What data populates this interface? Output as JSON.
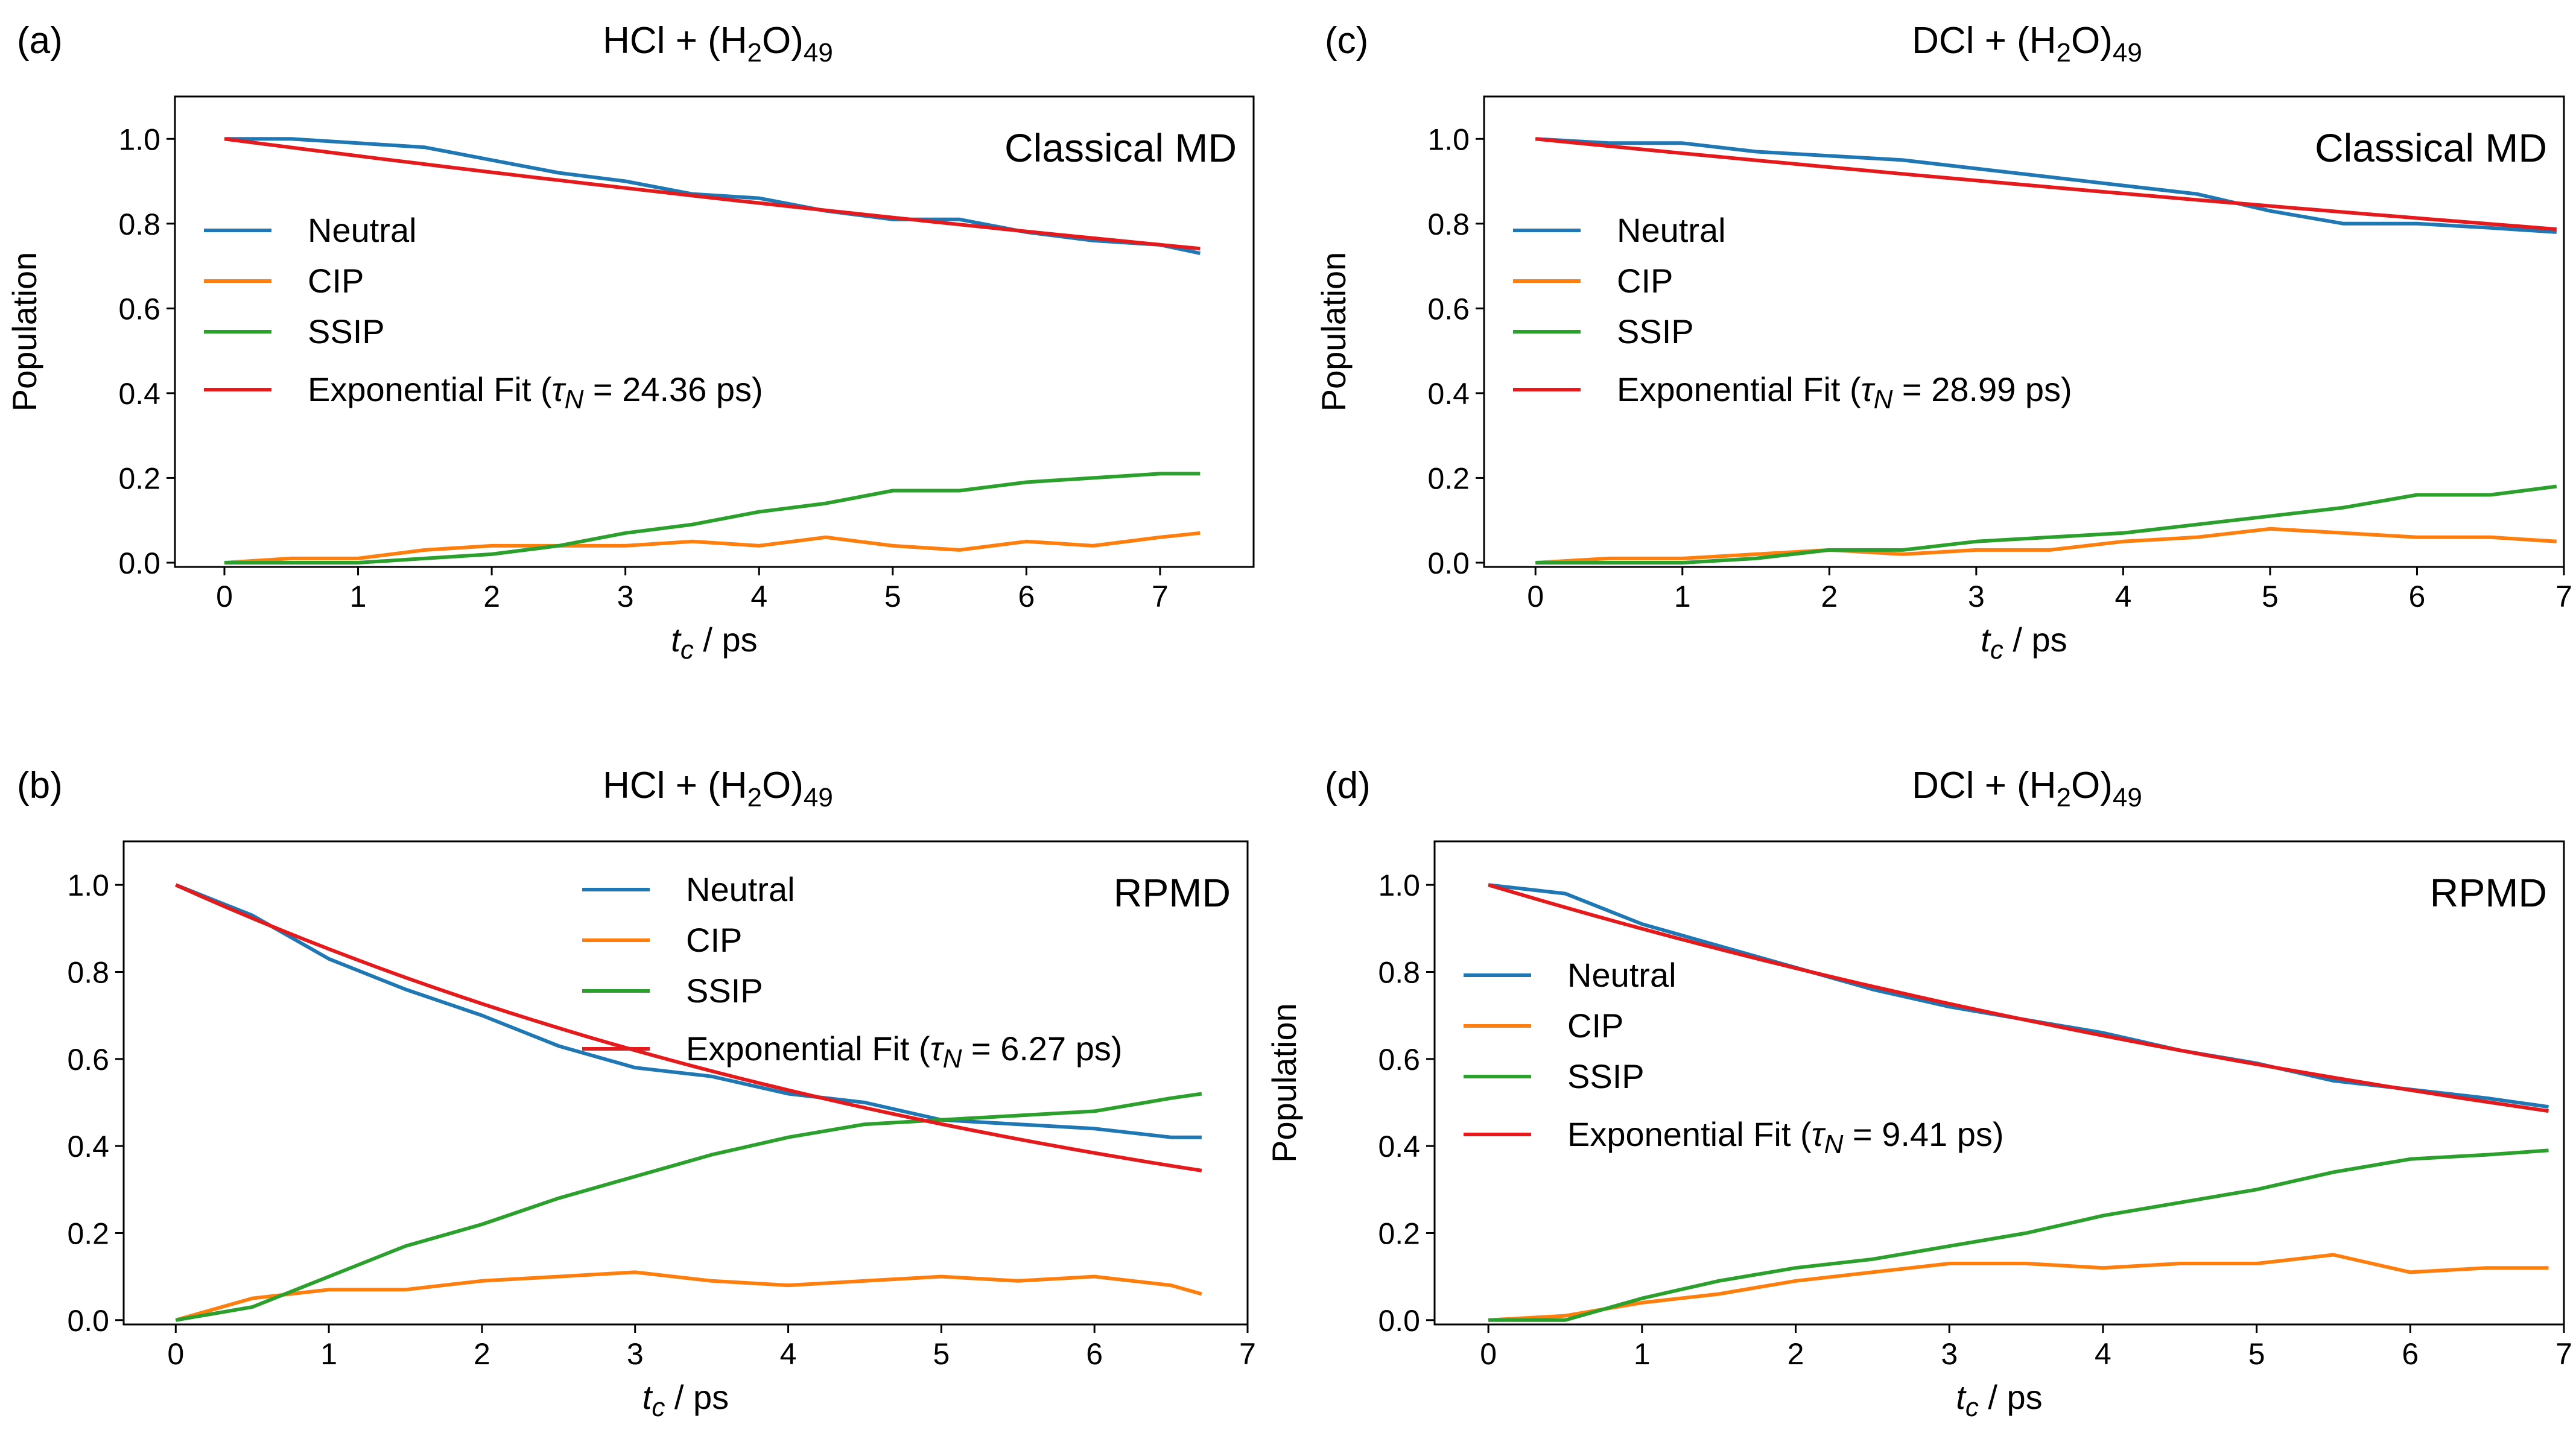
{
  "chart_data": [
    {
      "type": "line",
      "panel_label": "(a)",
      "title": {
        "prefix": "HCl + (H",
        "sub": "2",
        "mid": "O)",
        "sub2": "49"
      },
      "method": "Classical MD",
      "xlabel": {
        "var": "t",
        "sub": "c",
        "unit": " / ps"
      },
      "ylabel": "Population",
      "xlim": [
        -0.37,
        7.7
      ],
      "ylim": [
        -0.01,
        1.1
      ],
      "xticks": [
        "0",
        "1",
        "2",
        "3",
        "4",
        "5",
        "6",
        "7"
      ],
      "yticks": [
        "0.0",
        "0.2",
        "0.4",
        "0.6",
        "0.8",
        "1.0"
      ],
      "legend_position": "center-left",
      "legend": {
        "neutral": "Neutral",
        "cip": "CIP",
        "ssip": "SSIP",
        "fit": {
          "prefix": "Exponential Fit (",
          "tau": "τ",
          "tau_sub": "N",
          "suffix": " = 24.36 ps)"
        }
      },
      "colors": {
        "neutral": "#1f77b4",
        "cip": "#ff7f0e",
        "ssip": "#2ca02c",
        "fit": "#e41a1c"
      },
      "series": [
        {
          "name": "Neutral",
          "x": [
            0,
            0.5,
            1,
            1.5,
            2,
            2.5,
            3,
            3.5,
            4,
            4.5,
            5,
            5.5,
            6,
            6.5,
            7,
            7.3
          ],
          "values": [
            1.0,
            1.0,
            0.99,
            0.98,
            0.95,
            0.92,
            0.9,
            0.87,
            0.86,
            0.83,
            0.81,
            0.81,
            0.78,
            0.76,
            0.75,
            0.73
          ]
        },
        {
          "name": "CIP",
          "x": [
            0,
            0.5,
            1,
            1.5,
            2,
            2.5,
            3,
            3.5,
            4,
            4.5,
            5,
            5.5,
            6,
            6.5,
            7,
            7.3
          ],
          "values": [
            0.0,
            0.01,
            0.01,
            0.03,
            0.04,
            0.04,
            0.04,
            0.05,
            0.04,
            0.06,
            0.04,
            0.03,
            0.05,
            0.04,
            0.06,
            0.07
          ]
        },
        {
          "name": "SSIP",
          "x": [
            0,
            0.5,
            1,
            1.5,
            2,
            2.5,
            3,
            3.5,
            4,
            4.5,
            5,
            5.5,
            6,
            6.5,
            7,
            7.3
          ],
          "values": [
            0.0,
            0.0,
            0.0,
            0.01,
            0.02,
            0.04,
            0.07,
            0.09,
            0.12,
            0.14,
            0.17,
            0.17,
            0.19,
            0.2,
            0.21,
            0.21
          ]
        },
        {
          "name": "Exponential Fit",
          "tau": 24.36,
          "x_end": 7.3
        }
      ]
    },
    {
      "type": "line",
      "panel_label": "(c)",
      "title": {
        "prefix": "DCl + (H",
        "sub": "2",
        "mid": "O)",
        "sub2": "49"
      },
      "method": "Classical MD",
      "xlabel": {
        "var": "t",
        "sub": "c",
        "unit": " / ps"
      },
      "ylabel": "Population",
      "xlim": [
        -0.35,
        7.0
      ],
      "ylim": [
        -0.01,
        1.1
      ],
      "xticks": [
        "0",
        "1",
        "2",
        "3",
        "4",
        "5",
        "6",
        "7"
      ],
      "yticks": [
        "0.0",
        "0.2",
        "0.4",
        "0.6",
        "0.8",
        "1.0"
      ],
      "legend_position": "center-left",
      "legend": {
        "neutral": "Neutral",
        "cip": "CIP",
        "ssip": "SSIP",
        "fit": {
          "prefix": "Exponential Fit (",
          "tau": "τ",
          "tau_sub": "N",
          "suffix": " = 28.99 ps)"
        }
      },
      "colors": {
        "neutral": "#1f77b4",
        "cip": "#ff7f0e",
        "ssip": "#2ca02c",
        "fit": "#e41a1c"
      },
      "series": [
        {
          "name": "Neutral",
          "x": [
            0,
            0.5,
            1,
            1.5,
            2,
            2.5,
            3,
            3.5,
            4,
            4.5,
            5,
            5.5,
            6,
            6.5,
            6.95
          ],
          "values": [
            1.0,
            0.99,
            0.99,
            0.97,
            0.96,
            0.95,
            0.93,
            0.91,
            0.89,
            0.87,
            0.83,
            0.8,
            0.8,
            0.79,
            0.78
          ]
        },
        {
          "name": "CIP",
          "x": [
            0,
            0.5,
            1,
            1.5,
            2,
            2.5,
            3,
            3.5,
            4,
            4.5,
            5,
            5.5,
            6,
            6.5,
            6.95
          ],
          "values": [
            0.0,
            0.01,
            0.01,
            0.02,
            0.03,
            0.02,
            0.03,
            0.03,
            0.05,
            0.06,
            0.08,
            0.07,
            0.06,
            0.06,
            0.05
          ]
        },
        {
          "name": "SSIP",
          "x": [
            0,
            0.5,
            1,
            1.5,
            2,
            2.5,
            3,
            3.5,
            4,
            4.5,
            5,
            5.5,
            6,
            6.5,
            6.95
          ],
          "values": [
            0.0,
            0.0,
            0.0,
            0.01,
            0.03,
            0.03,
            0.05,
            0.06,
            0.07,
            0.09,
            0.11,
            0.13,
            0.16,
            0.16,
            0.18
          ]
        },
        {
          "name": "Exponential Fit",
          "tau": 28.99,
          "x_end": 6.95
        }
      ]
    },
    {
      "type": "line",
      "panel_label": "(b)",
      "title": {
        "prefix": "HCl + (H",
        "sub": "2",
        "mid": "O)",
        "sub2": "49"
      },
      "method": "RPMD",
      "xlabel": {
        "var": "t",
        "sub": "c",
        "unit": " / ps"
      },
      "ylabel": "Population",
      "xlim": [
        -0.34,
        7.0
      ],
      "ylim": [
        -0.01,
        1.1
      ],
      "xticks": [
        "0",
        "1",
        "2",
        "3",
        "4",
        "5",
        "6",
        "7"
      ],
      "yticks": [
        "0.0",
        "0.2",
        "0.4",
        "0.6",
        "0.8",
        "1.0"
      ],
      "legend_position": "upper-center",
      "legend": {
        "neutral": "Neutral",
        "cip": "CIP",
        "ssip": "SSIP",
        "fit": {
          "prefix": "Exponential Fit (",
          "tau": "τ",
          "tau_sub": "N",
          "suffix": " = 6.27 ps)"
        }
      },
      "colors": {
        "neutral": "#1f77b4",
        "cip": "#ff7f0e",
        "ssip": "#2ca02c",
        "fit": "#e41a1c"
      },
      "series": [
        {
          "name": "Neutral",
          "x": [
            0,
            0.5,
            1,
            1.5,
            2,
            2.5,
            3,
            3.5,
            4,
            4.5,
            5,
            5.5,
            6,
            6.5,
            6.7
          ],
          "values": [
            1.0,
            0.93,
            0.83,
            0.76,
            0.7,
            0.63,
            0.58,
            0.56,
            0.52,
            0.5,
            0.46,
            0.45,
            0.44,
            0.42,
            0.42
          ]
        },
        {
          "name": "CIP",
          "x": [
            0,
            0.5,
            1,
            1.5,
            2,
            2.5,
            3,
            3.5,
            4,
            4.5,
            5,
            5.5,
            6,
            6.5,
            6.7
          ],
          "values": [
            0.0,
            0.05,
            0.07,
            0.07,
            0.09,
            0.1,
            0.11,
            0.09,
            0.08,
            0.09,
            0.1,
            0.09,
            0.1,
            0.08,
            0.06
          ]
        },
        {
          "name": "SSIP",
          "x": [
            0,
            0.5,
            1,
            1.5,
            2,
            2.5,
            3,
            3.5,
            4,
            4.5,
            5,
            5.5,
            6,
            6.5,
            6.7
          ],
          "values": [
            0.0,
            0.03,
            0.1,
            0.17,
            0.22,
            0.28,
            0.33,
            0.38,
            0.42,
            0.45,
            0.46,
            0.47,
            0.48,
            0.51,
            0.52
          ]
        },
        {
          "name": "Exponential Fit",
          "tau": 6.27,
          "x_end": 6.7
        }
      ]
    },
    {
      "type": "line",
      "panel_label": "(d)",
      "title": {
        "prefix": "DCl + (H",
        "sub": "2",
        "mid": "O)",
        "sub2": "49"
      },
      "method": "RPMD",
      "xlabel": {
        "var": "t",
        "sub": "c",
        "unit": " / ps"
      },
      "ylabel": "Population",
      "xlim": [
        -0.35,
        7.0
      ],
      "ylim": [
        -0.01,
        1.1
      ],
      "xticks": [
        "0",
        "1",
        "2",
        "3",
        "4",
        "5",
        "6",
        "7"
      ],
      "yticks": [
        "0.0",
        "0.2",
        "0.4",
        "0.6",
        "0.8",
        "1.0"
      ],
      "legend_position": "center-left",
      "legend": {
        "neutral": "Neutral",
        "cip": "CIP",
        "ssip": "SSIP",
        "fit": {
          "prefix": "Exponential Fit (",
          "tau": "τ",
          "tau_sub": "N",
          "suffix": " = 9.41 ps)"
        }
      },
      "colors": {
        "neutral": "#1f77b4",
        "cip": "#ff7f0e",
        "ssip": "#2ca02c",
        "fit": "#e41a1c"
      },
      "series": [
        {
          "name": "Neutral",
          "x": [
            0,
            0.5,
            1,
            1.5,
            2,
            2.5,
            3,
            3.5,
            4,
            4.5,
            5,
            5.5,
            6,
            6.5,
            6.9
          ],
          "values": [
            1.0,
            0.98,
            0.91,
            0.86,
            0.81,
            0.76,
            0.72,
            0.69,
            0.66,
            0.62,
            0.59,
            0.55,
            0.53,
            0.51,
            0.49
          ]
        },
        {
          "name": "CIP",
          "x": [
            0,
            0.5,
            1,
            1.5,
            2,
            2.5,
            3,
            3.5,
            4,
            4.5,
            5,
            5.5,
            6,
            6.5,
            6.9
          ],
          "values": [
            0.0,
            0.01,
            0.04,
            0.06,
            0.09,
            0.11,
            0.13,
            0.13,
            0.12,
            0.13,
            0.13,
            0.15,
            0.11,
            0.12,
            0.12
          ]
        },
        {
          "name": "SSIP",
          "x": [
            0,
            0.5,
            1,
            1.5,
            2,
            2.5,
            3,
            3.5,
            4,
            4.5,
            5,
            5.5,
            6,
            6.5,
            6.9
          ],
          "values": [
            0.0,
            0.0,
            0.05,
            0.09,
            0.12,
            0.14,
            0.17,
            0.2,
            0.24,
            0.27,
            0.3,
            0.34,
            0.37,
            0.38,
            0.39
          ]
        },
        {
          "name": "Exponential Fit",
          "tau": 9.41,
          "x_end": 6.9
        }
      ]
    }
  ]
}
